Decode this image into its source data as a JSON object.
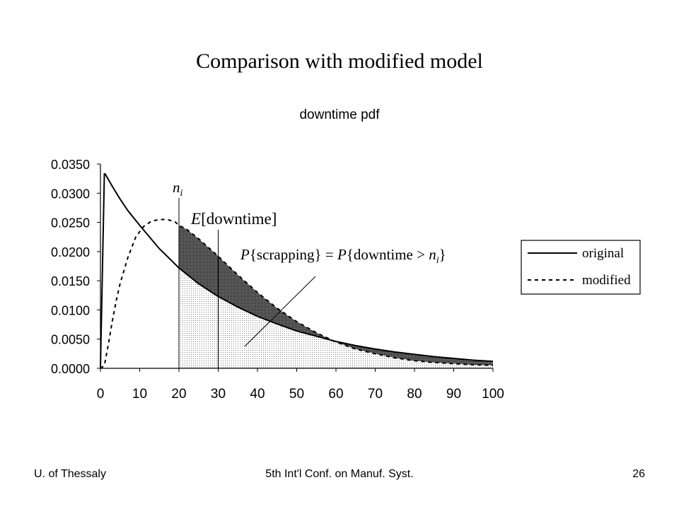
{
  "slide": {
    "title": "Comparison with modified model",
    "footer_left": "U. of Thessaly",
    "footer_center": "5th Int'l Conf. on Manuf. Syst.",
    "footer_right": "26"
  },
  "chart_data": {
    "type": "line",
    "title": "downtime pdf",
    "xlabel": "",
    "ylabel": "",
    "xlim": [
      0,
      100
    ],
    "ylim": [
      0,
      0.035
    ],
    "x_ticks": [
      "0",
      "10",
      "20",
      "30",
      "40",
      "50",
      "60",
      "70",
      "80",
      "90",
      "100"
    ],
    "y_ticks": [
      "0.0000",
      "0.0050",
      "0.0100",
      "0.0150",
      "0.0200",
      "0.0250",
      "0.0300",
      "0.0350"
    ],
    "legend_position": "right",
    "grid": false,
    "series": [
      {
        "name": "original",
        "style": "solid",
        "color": "#000000",
        "x": [
          0,
          1,
          1.2,
          3,
          5,
          7,
          10,
          15,
          20,
          25,
          30,
          35,
          40,
          45,
          50,
          55,
          60,
          65,
          70,
          75,
          80,
          85,
          90,
          95,
          100
        ],
        "y": [
          0.0,
          0.0333,
          0.0333,
          0.0312,
          0.029,
          0.027,
          0.0245,
          0.0205,
          0.0172,
          0.0145,
          0.0123,
          0.0105,
          0.0089,
          0.0076,
          0.0064,
          0.0055,
          0.0046,
          0.0039,
          0.0033,
          0.0028,
          0.0024,
          0.002,
          0.0017,
          0.0014,
          0.0012
        ]
      },
      {
        "name": "modified",
        "style": "dashed",
        "color": "#000000",
        "x": [
          0,
          1,
          2,
          3,
          4,
          5,
          7,
          9,
          11,
          13,
          15,
          17,
          19,
          20,
          22,
          25,
          30,
          35,
          40,
          45,
          50,
          55,
          60,
          65,
          70,
          75,
          80,
          85,
          90,
          95,
          100
        ],
        "y": [
          0.0,
          0.0005,
          0.004,
          0.008,
          0.0115,
          0.0145,
          0.019,
          0.0225,
          0.0243,
          0.0252,
          0.0255,
          0.0255,
          0.0251,
          0.0245,
          0.0238,
          0.0222,
          0.0192,
          0.016,
          0.013,
          0.0103,
          0.008,
          0.0061,
          0.0045,
          0.0033,
          0.0025,
          0.0018,
          0.0013,
          0.001,
          0.0008,
          0.0006,
          0.0005
        ]
      }
    ],
    "reference_lines": [
      {
        "x": 20,
        "label": "n_i"
      },
      {
        "x": 30,
        "label": "E[downtime]"
      }
    ],
    "annotations": {
      "n_i_base": "n",
      "n_i_sub": "i",
      "expected_italic": "E",
      "expected_rest": "[downtime]",
      "prob_P1": "P",
      "prob_mid": "{scrapping} = ",
      "prob_P2": "P",
      "prob_rest": "{downtime > ",
      "prob_n": "n",
      "prob_sub": "i",
      "prob_close": "}"
    },
    "shaded_regions": [
      "area under original for x > n_i (dotted)",
      "area between modified and original for x > n_i (dark)"
    ]
  }
}
